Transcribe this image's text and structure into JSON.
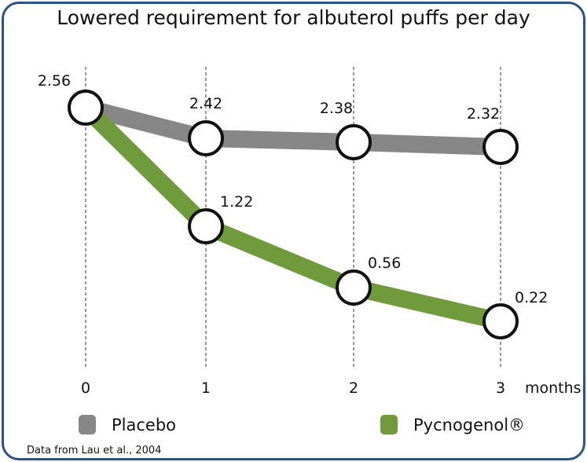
{
  "chart_data": {
    "type": "line",
    "title": "Lowered requirement for albuterol puffs per day",
    "xlabel": "months",
    "categories": [
      "0",
      "1",
      "2",
      "3"
    ],
    "series": [
      {
        "name": "Placebo",
        "values": [
          2.56,
          2.42,
          2.38,
          2.32
        ],
        "labels": [
          "2.56",
          "2.42",
          "2.38",
          "2.32"
        ],
        "color": "#878787"
      },
      {
        "name": "Pycnogenol®",
        "values": [
          2.56,
          1.22,
          0.56,
          0.22
        ],
        "labels": [
          "",
          "1.22",
          "0.56",
          "0.22"
        ],
        "color": "#6f9b3c"
      }
    ],
    "grid": "vertical dashed",
    "legend": "bottom",
    "source": "Data from Lau et al., 2004"
  },
  "colors": {
    "border": "#2c5286"
  }
}
